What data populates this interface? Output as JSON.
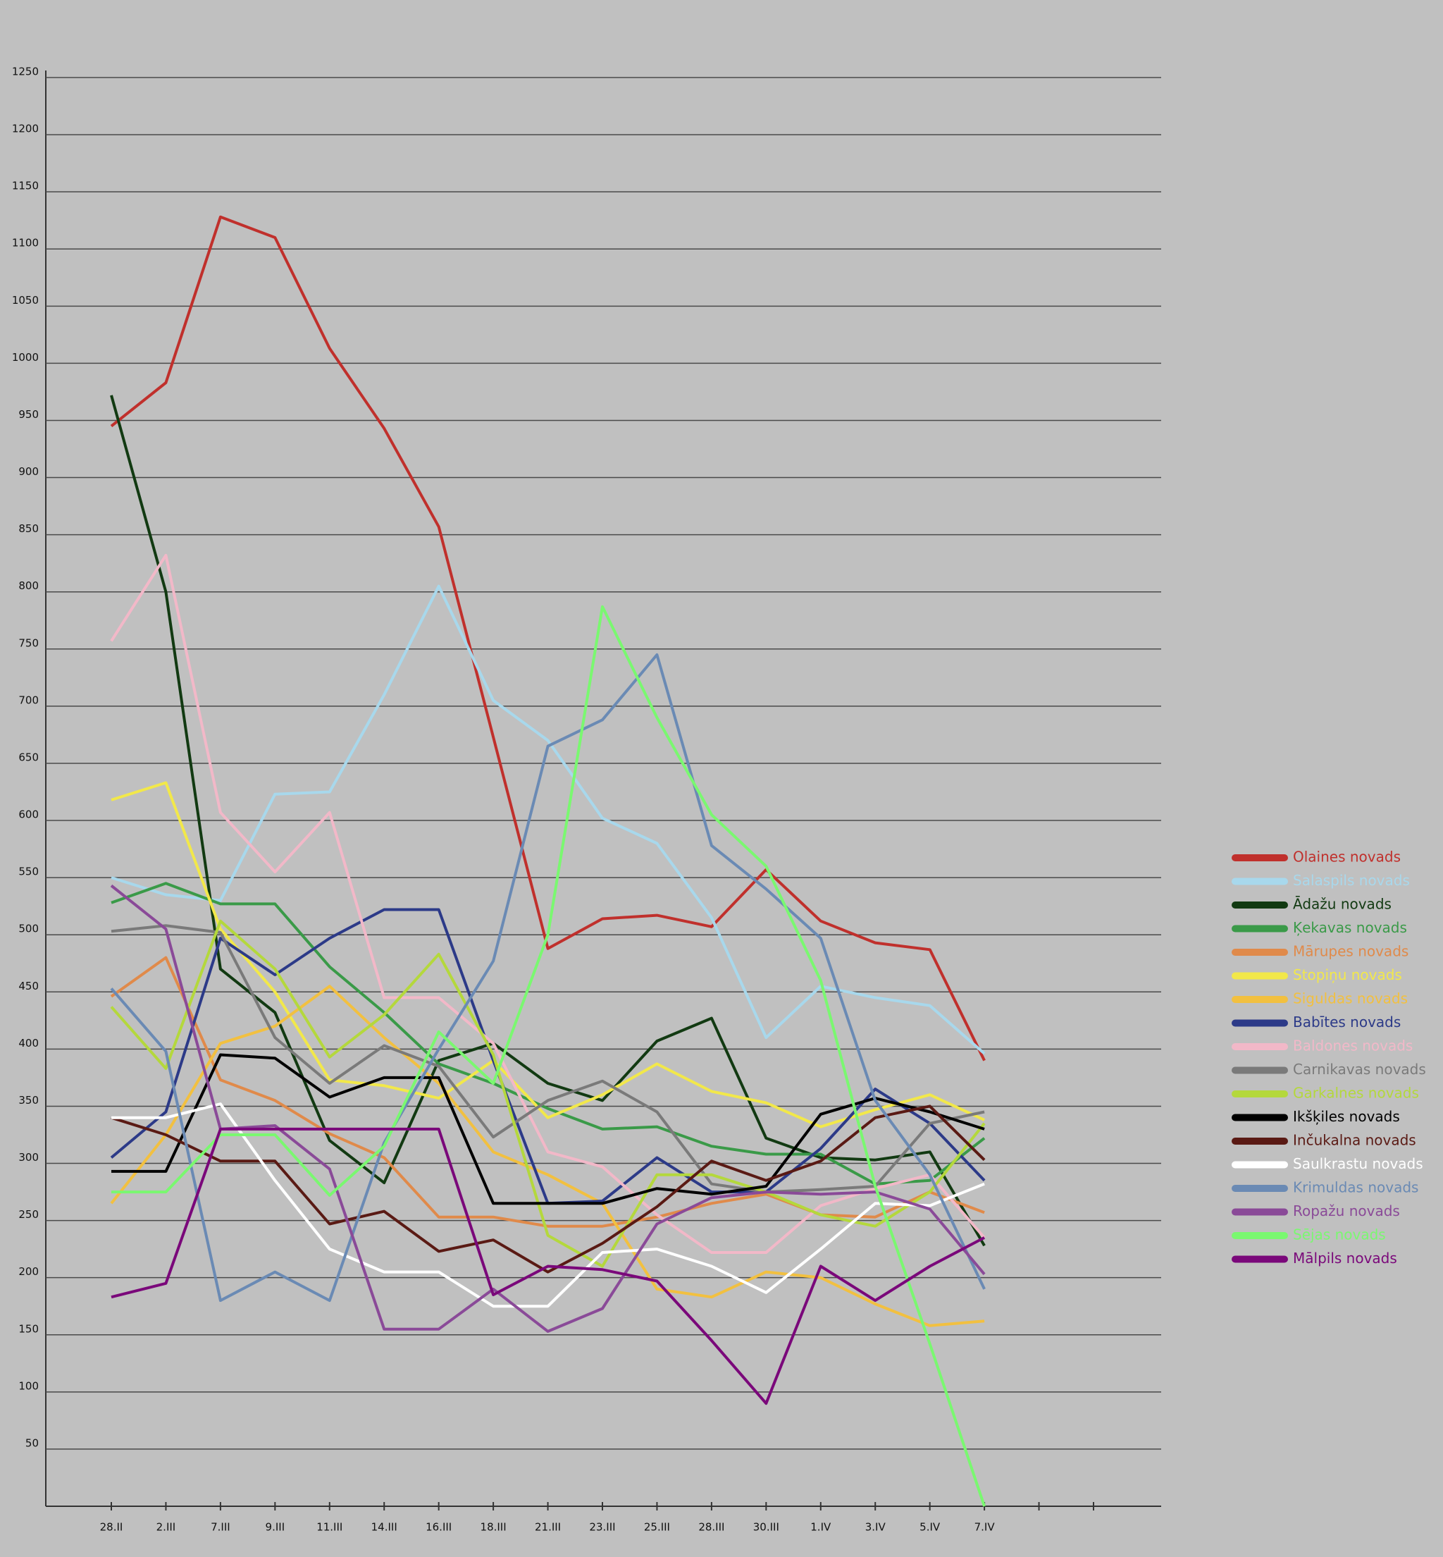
{
  "chart_data": {
    "type": "line",
    "categories": [
      "28.II",
      "2.III",
      "7.III",
      "9.III",
      "11.III",
      "14.III",
      "16.III",
      "18.III",
      "21.III",
      "23.III",
      "25.III",
      "28.III",
      "30.III",
      "1.IV",
      "3.IV",
      "5.IV",
      "7.IV",
      null,
      null
    ],
    "ylim": [
      0,
      1250
    ],
    "yticks": [
      50,
      100,
      150,
      200,
      250,
      300,
      350,
      400,
      450,
      500,
      550,
      600,
      650,
      700,
      750,
      800,
      850,
      900,
      950,
      1000,
      1050,
      1100,
      1150,
      1200,
      1250
    ],
    "grid": true,
    "legend": "right",
    "series": [
      {
        "name": "Olaines novads",
        "color": "#c0302c",
        "values": [
          945,
          983,
          1128,
          1110,
          1013,
          943,
          857,
          673,
          488,
          514,
          517,
          507,
          557,
          512,
          493,
          487,
          390,
          null,
          null
        ]
      },
      {
        "name": "Salaspils novads",
        "color": "#a8d8ec",
        "values": [
          550,
          535,
          530,
          623,
          625,
          710,
          805,
          705,
          670,
          602,
          580,
          515,
          410,
          455,
          445,
          438,
          396,
          null,
          null
        ]
      },
      {
        "name": "Ādažu novads",
        "color": "#123a12",
        "values": [
          972,
          800,
          470,
          432,
          320,
          283,
          390,
          405,
          370,
          355,
          407,
          427,
          322,
          305,
          303,
          310,
          228,
          null,
          null
        ]
      },
      {
        "name": "Ķekavas novads",
        "color": "#3a9a48",
        "values": [
          528,
          545,
          527,
          527,
          472,
          432,
          387,
          370,
          348,
          330,
          332,
          315,
          308,
          308,
          282,
          285,
          322,
          null,
          null
        ]
      },
      {
        "name": "Mārupes novads",
        "color": "#e08a4a",
        "values": [
          446,
          480,
          373,
          355,
          326,
          305,
          253,
          253,
          245,
          245,
          253,
          265,
          273,
          255,
          253,
          275,
          257,
          null,
          null
        ]
      },
      {
        "name": "Stopiņu novads",
        "color": "#f2e84a",
        "values": [
          618,
          633,
          505,
          450,
          373,
          368,
          357,
          390,
          340,
          360,
          387,
          363,
          353,
          332,
          347,
          360,
          338,
          null,
          null
        ]
      },
      {
        "name": "Siguldas novads",
        "color": "#f2c040",
        "values": [
          265,
          325,
          405,
          420,
          455,
          410,
          370,
          310,
          290,
          265,
          190,
          183,
          205,
          200,
          177,
          158,
          162,
          null,
          null
        ]
      },
      {
        "name": "Babītes novads",
        "color": "#2c3a88",
        "values": [
          305,
          345,
          497,
          465,
          497,
          522,
          522,
          390,
          265,
          267,
          305,
          275,
          275,
          313,
          365,
          335,
          285,
          null,
          null
        ]
      },
      {
        "name": "Baldones novads",
        "color": "#f2b8c8",
        "values": [
          757,
          832,
          607,
          555,
          607,
          445,
          445,
          405,
          310,
          297,
          255,
          222,
          222,
          263,
          278,
          290,
          235,
          null,
          null
        ]
      },
      {
        "name": "Carnikavas novads",
        "color": "#7a7a7a",
        "values": [
          503,
          508,
          502,
          410,
          370,
          403,
          385,
          323,
          355,
          372,
          345,
          282,
          275,
          277,
          280,
          335,
          345,
          null,
          null
        ]
      },
      {
        "name": "Garkalnes novads",
        "color": "#b4d83c",
        "values": [
          437,
          383,
          512,
          470,
          393,
          430,
          483,
          395,
          237,
          210,
          290,
          290,
          275,
          255,
          245,
          275,
          335,
          null,
          null
        ]
      },
      {
        "name": "Ikšķiles novads",
        "color": "#000000",
        "values": [
          293,
          293,
          395,
          392,
          358,
          375,
          375,
          265,
          265,
          265,
          278,
          273,
          280,
          343,
          357,
          345,
          330,
          null,
          null
        ]
      },
      {
        "name": "Inčukalna novads",
        "color": "#5a1a14",
        "values": [
          340,
          325,
          302,
          302,
          247,
          258,
          223,
          233,
          205,
          230,
          262,
          302,
          285,
          302,
          340,
          350,
          303,
          null,
          null
        ]
      },
      {
        "name": "Saulkrastu novads",
        "color": "#ffffff",
        "values": [
          340,
          340,
          352,
          285,
          225,
          205,
          205,
          175,
          175,
          222,
          225,
          210,
          187,
          225,
          265,
          263,
          282,
          null,
          null
        ]
      },
      {
        "name": "Krimuldas novads",
        "color": "#6a8ab4",
        "values": [
          453,
          398,
          180,
          205,
          180,
          318,
          400,
          477,
          665,
          688,
          745,
          578,
          540,
          497,
          355,
          290,
          190,
          null,
          null
        ]
      },
      {
        "name": "Ropažu novads",
        "color": "#8a4a98",
        "values": [
          543,
          505,
          330,
          333,
          295,
          155,
          155,
          190,
          153,
          173,
          247,
          270,
          275,
          273,
          275,
          260,
          203,
          null,
          null
        ]
      },
      {
        "name": "Sējas novads",
        "color": "#7af870",
        "values": [
          275,
          275,
          325,
          325,
          272,
          315,
          415,
          370,
          500,
          787,
          690,
          605,
          560,
          460,
          280,
          142,
          0,
          null,
          null
        ]
      },
      {
        "name": "Mālpils novads",
        "color": "#7a087a",
        "values": [
          183,
          195,
          330,
          330,
          330,
          330,
          330,
          185,
          210,
          207,
          197,
          145,
          90,
          210,
          180,
          210,
          235,
          null,
          null
        ]
      }
    ]
  }
}
